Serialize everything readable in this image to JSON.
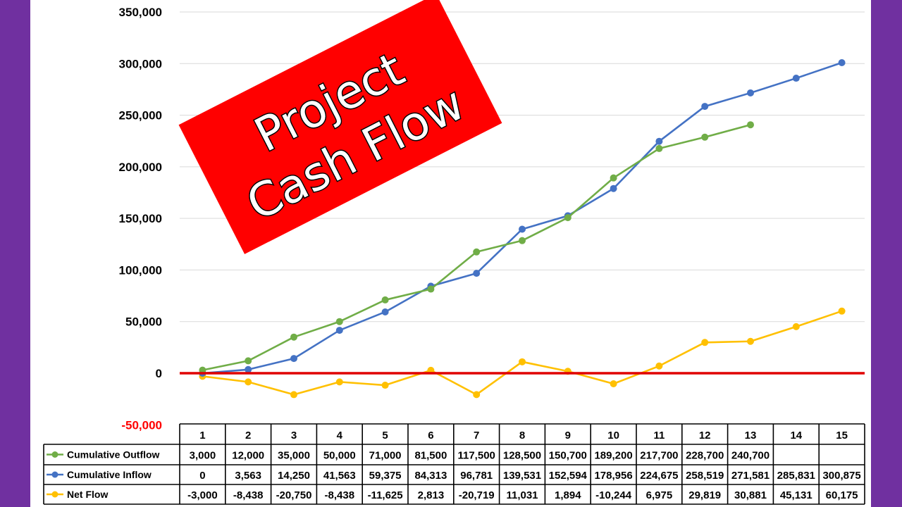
{
  "colors": {
    "background_frame": "#7030a0",
    "panel": "#ffffff",
    "banner": "#ff0000",
    "zero_line": "#e00000",
    "negative_tick": "#ff0000",
    "Cumulative Outflow": "#70ad47",
    "Cumulative Inflow": "#4472c4",
    "Net Flow": "#ffc000"
  },
  "banner": {
    "line1": "Project",
    "line2": "Cash Flow"
  },
  "chart_data": {
    "type": "line",
    "title": "",
    "xlabel": "",
    "ylabel": "",
    "ylim": [
      -50000,
      350000
    ],
    "ytick_step": 50000,
    "ytick_labels": [
      "-50,000",
      "0",
      "50,000",
      "100,000",
      "150,000",
      "200,000",
      "250,000",
      "300,000",
      "350,000"
    ],
    "grid": true,
    "categories": [
      "1",
      "2",
      "3",
      "4",
      "5",
      "6",
      "7",
      "8",
      "9",
      "10",
      "11",
      "12",
      "13",
      "14",
      "15"
    ],
    "series": [
      {
        "name": "Cumulative Outflow",
        "values": [
          3000,
          12000,
          35000,
          50000,
          71000,
          81500,
          117500,
          128500,
          150700,
          189200,
          217700,
          228700,
          240700,
          null,
          null
        ],
        "labels": [
          "3,000",
          "12,000",
          "35,000",
          "50,000",
          "71,000",
          "81,500",
          "117,500",
          "128,500",
          "150,700",
          "189,200",
          "217,700",
          "228,700",
          "240,700",
          "",
          ""
        ]
      },
      {
        "name": "Cumulative Inflow",
        "values": [
          0,
          3563,
          14250,
          41563,
          59375,
          84313,
          96781,
          139531,
          152594,
          178956,
          224675,
          258519,
          271581,
          285831,
          300875
        ],
        "labels": [
          "0",
          "3,563",
          "14,250",
          "41,563",
          "59,375",
          "84,313",
          "96,781",
          "139,531",
          "152,594",
          "178,956",
          "224,675",
          "258,519",
          "271,581",
          "285,831",
          "300,875"
        ]
      },
      {
        "name": "Net Flow",
        "values": [
          -3000,
          -8438,
          -20750,
          -8438,
          -11625,
          2813,
          -20719,
          11031,
          1894,
          -10244,
          6975,
          29819,
          30881,
          45131,
          60175
        ],
        "labels": [
          "-3,000",
          "-8,438",
          "-20,750",
          "-8,438",
          "-11,625",
          "2,813",
          "-20,719",
          "11,031",
          "1,894",
          "-10,244",
          "6,975",
          "29,819",
          "30,881",
          "45,131",
          "60,175"
        ]
      }
    ]
  }
}
